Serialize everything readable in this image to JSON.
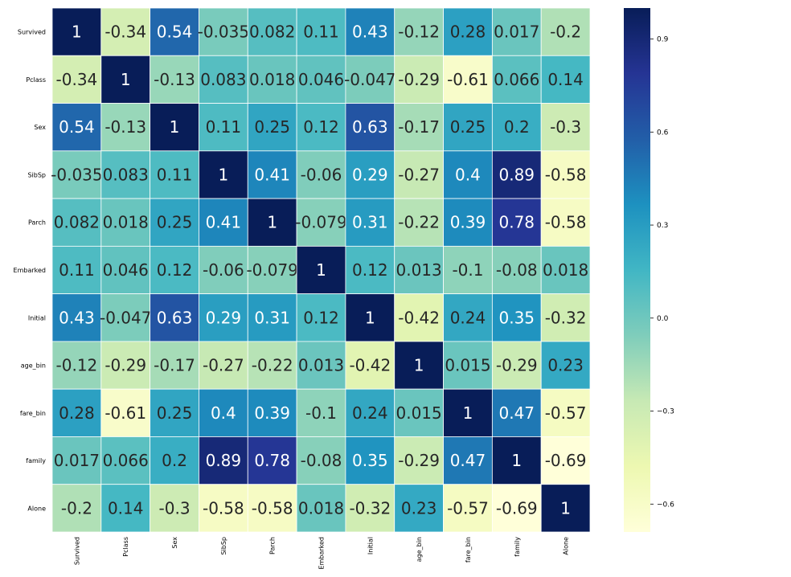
{
  "chart_data": {
    "type": "heatmap",
    "title": "",
    "xlabel": "",
    "ylabel": "",
    "row_labels": [
      "Survived",
      "Pclass",
      "Sex",
      "SibSp",
      "Parch",
      "Embarked",
      "Initial",
      "age_bin",
      "fare_bin",
      "family",
      "Alone"
    ],
    "col_labels": [
      "Survived",
      "Pclass",
      "Sex",
      "SibSp",
      "Parch",
      "Embarked",
      "Initial",
      "age_bin",
      "fare_bin",
      "family",
      "Alone"
    ],
    "values": [
      [
        1,
        -0.34,
        0.54,
        -0.035,
        0.082,
        0.11,
        0.43,
        -0.12,
        0.28,
        0.017,
        -0.2
      ],
      [
        -0.34,
        1,
        -0.13,
        0.083,
        0.018,
        0.046,
        -0.047,
        -0.29,
        -0.61,
        0.066,
        0.14
      ],
      [
        0.54,
        -0.13,
        1,
        0.11,
        0.25,
        0.12,
        0.63,
        -0.17,
        0.25,
        0.2,
        -0.3
      ],
      [
        -0.035,
        0.083,
        0.11,
        1,
        0.41,
        -0.06,
        0.29,
        -0.27,
        0.4,
        0.89,
        -0.58
      ],
      [
        0.082,
        0.018,
        0.25,
        0.41,
        1,
        -0.079,
        0.31,
        -0.22,
        0.39,
        0.78,
        -0.58
      ],
      [
        0.11,
        0.046,
        0.12,
        -0.06,
        -0.079,
        1,
        0.12,
        0.013,
        -0.1,
        -0.08,
        0.018
      ],
      [
        0.43,
        -0.047,
        0.63,
        0.29,
        0.31,
        0.12,
        1,
        -0.42,
        0.24,
        0.35,
        -0.32
      ],
      [
        -0.12,
        -0.29,
        -0.17,
        -0.27,
        -0.22,
        0.013,
        -0.42,
        1,
        0.015,
        -0.29,
        0.23
      ],
      [
        0.28,
        -0.61,
        0.25,
        0.4,
        0.39,
        -0.1,
        0.24,
        0.015,
        1,
        0.47,
        -0.57
      ],
      [
        0.017,
        0.066,
        0.2,
        0.89,
        0.78,
        -0.08,
        0.35,
        -0.29,
        0.47,
        1,
        -0.69
      ],
      [
        -0.2,
        0.14,
        -0.3,
        -0.58,
        -0.58,
        0.018,
        -0.32,
        0.23,
        -0.57,
        -0.69,
        1
      ]
    ],
    "labels": [
      [
        "1",
        "-0.34",
        "0.54",
        "-0.035",
        "0.082",
        "0.11",
        "0.43",
        "-0.12",
        "0.28",
        "0.017",
        "-0.2"
      ],
      [
        "-0.34",
        "1",
        "-0.13",
        "0.083",
        "0.018",
        "0.046",
        "-0.047",
        "-0.29",
        "-0.61",
        "0.066",
        "0.14"
      ],
      [
        "0.54",
        "-0.13",
        "1",
        "0.11",
        "0.25",
        "0.12",
        "0.63",
        "-0.17",
        "0.25",
        "0.2",
        "-0.3"
      ],
      [
        "-0.035",
        "0.083",
        "0.11",
        "1",
        "0.41",
        "-0.06",
        "0.29",
        "-0.27",
        "0.4",
        "0.89",
        "-0.58"
      ],
      [
        "0.082",
        "0.018",
        "0.25",
        "0.41",
        "1",
        "-0.079",
        "0.31",
        "-0.22",
        "0.39",
        "0.78",
        "-0.58"
      ],
      [
        "0.11",
        "0.046",
        "0.12",
        "-0.06",
        "-0.079",
        "1",
        "0.12",
        "0.013",
        "-0.1",
        "-0.08",
        "0.018"
      ],
      [
        "0.43",
        "-0.047",
        "0.63",
        "0.29",
        "0.31",
        "0.12",
        "1",
        "-0.42",
        "0.24",
        "0.35",
        "-0.32"
      ],
      [
        "-0.12",
        "-0.29",
        "-0.17",
        "-0.27",
        "-0.22",
        "0.013",
        "-0.42",
        "1",
        "0.015",
        "-0.29",
        "0.23"
      ],
      [
        "0.28",
        "-0.61",
        "0.25",
        "0.4",
        "0.39",
        "-0.1",
        "0.24",
        "0.015",
        "1",
        "0.47",
        "-0.57"
      ],
      [
        "0.017",
        "0.066",
        "0.2",
        "0.89",
        "0.78",
        "-0.08",
        "0.35",
        "-0.29",
        "0.47",
        "1",
        "-0.69"
      ],
      [
        "-0.2",
        "0.14",
        "-0.3",
        "-0.58",
        "-0.58",
        "0.018",
        "-0.32",
        "0.23",
        "-0.57",
        "-0.69",
        "1"
      ]
    ],
    "vmin": -0.69,
    "vmax": 1,
    "colormap": "YlGnBu",
    "colormap_stops": [
      "#ffffd9",
      "#edf8b1",
      "#c7e9b4",
      "#7fcdbb",
      "#41b6c4",
      "#1d91c0",
      "#225ea8",
      "#253494",
      "#081d58"
    ],
    "colorbar": {
      "ticks": [
        0.9,
        0.6,
        0.3,
        0.0,
        -0.3,
        -0.6
      ],
      "tick_labels": [
        "0.9",
        "0.6",
        "0.3",
        "0.0",
        "−0.3",
        "−0.6"
      ]
    },
    "annot_text_dark": "#262626",
    "annot_text_light": "#ffffff",
    "grid_line_color": "#ffffff"
  }
}
